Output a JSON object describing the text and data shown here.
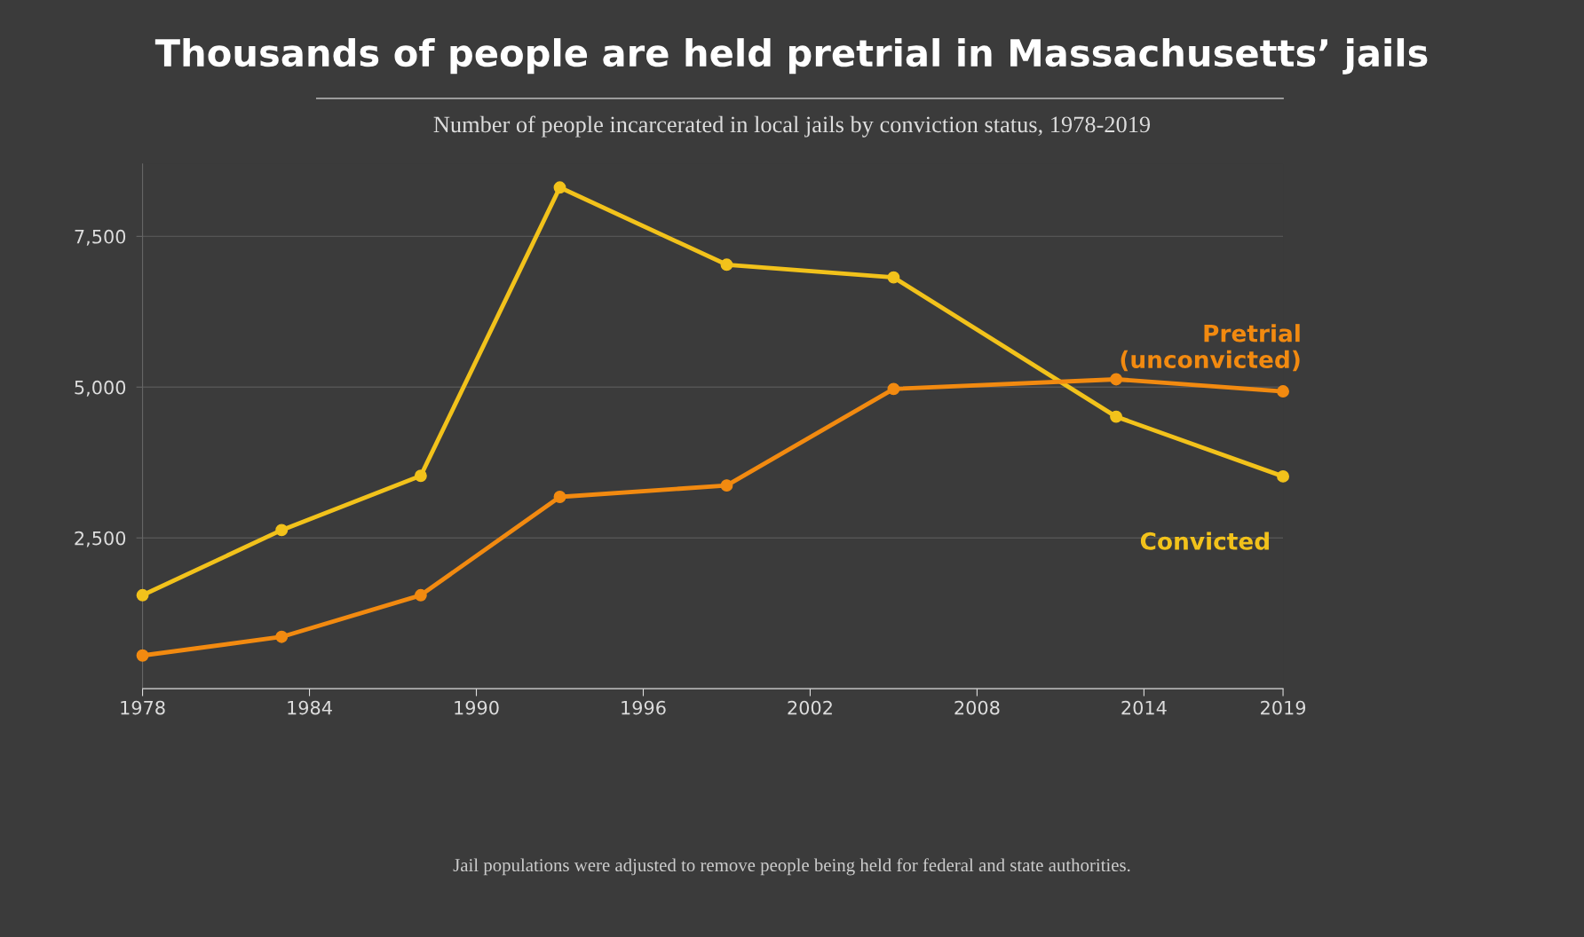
{
  "chart_data": {
    "type": "line",
    "title": "Thousands of people are held pretrial in Massachusetts’ jails",
    "subtitle": "Number of people incarcerated in local jails by conviction status, 1978-2019",
    "x": [
      1978,
      1983,
      1988,
      1993,
      1999,
      2005,
      2013,
      2019
    ],
    "series": [
      {
        "name": "Convicted",
        "color": "#f2c21b",
        "values": [
          1550,
          2630,
          3530,
          8310,
          7030,
          6820,
          4510,
          3520
        ]
      },
      {
        "name": "Pretrial\n(unconvicted)",
        "color": "#f28a10",
        "values": [
          550,
          860,
          1550,
          3180,
          3370,
          4970,
          5130,
          4930
        ]
      }
    ],
    "xlim": [
      1978,
      2019
    ],
    "xticks": [
      1978,
      1984,
      1990,
      1996,
      2002,
      2008,
      2014,
      2019
    ],
    "ylim": [
      0,
      8700
    ],
    "yticks": [
      {
        "value": 2500,
        "label": "2,500"
      },
      {
        "value": 5000,
        "label": "5,000"
      },
      {
        "value": 7500,
        "label": "7,500"
      }
    ],
    "grid": "y",
    "legend": false,
    "marker": "circle",
    "line_style": "solid",
    "annotations": [
      "Jail populations were adjusted to remove people being held for federal and state authorities."
    ]
  }
}
